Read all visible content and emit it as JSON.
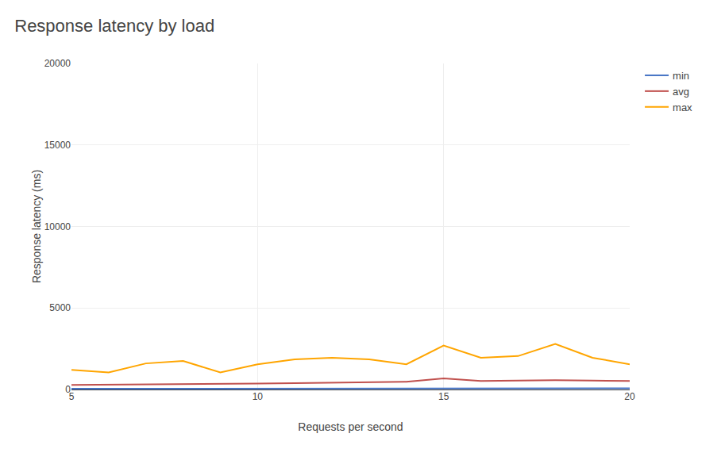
{
  "chart_data": {
    "type": "line",
    "title": "Response latency by load",
    "xlabel": "Requests per second",
    "ylabel": "Response latency (ms)",
    "x": [
      5,
      6,
      7,
      8,
      9,
      10,
      11,
      12,
      13,
      14,
      15,
      16,
      17,
      18,
      19,
      20
    ],
    "series": [
      {
        "name": "min",
        "color": "#4472C4",
        "values": [
          50,
          52,
          55,
          53,
          54,
          58,
          62,
          65,
          68,
          70,
          72,
          68,
          70,
          72,
          70,
          68
        ]
      },
      {
        "name": "avg",
        "color": "#C0504D",
        "values": [
          280,
          290,
          310,
          320,
          330,
          360,
          390,
          420,
          450,
          480,
          680,
          520,
          550,
          570,
          550,
          520
        ]
      },
      {
        "name": "max",
        "color": "#FFA500",
        "values": [
          1200,
          1050,
          1600,
          1750,
          1050,
          1550,
          1850,
          1950,
          1850,
          1550,
          2700,
          1950,
          2050,
          2800,
          1950,
          1550
        ]
      }
    ],
    "xlim": [
      5,
      20
    ],
    "ylim": [
      0,
      20000
    ],
    "xticks": [
      5,
      10,
      15,
      20
    ],
    "yticks": [
      0,
      5000,
      10000,
      15000,
      20000
    ],
    "grid": true,
    "legend": "right"
  }
}
